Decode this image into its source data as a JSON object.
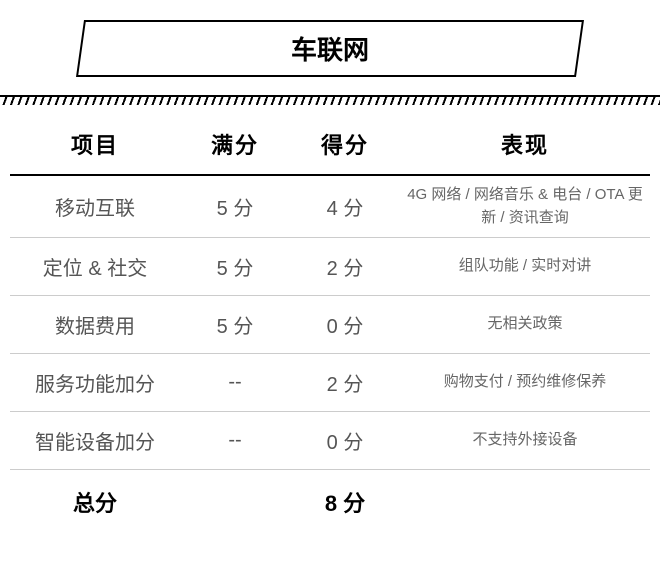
{
  "title": "车联网",
  "headers": {
    "item": "项目",
    "max": "满分",
    "score": "得分",
    "performance": "表现"
  },
  "rows": [
    {
      "item": "移动互联",
      "max": "5 分",
      "score": "4 分",
      "performance": "4G 网络 / 网络音乐 & 电台 / OTA 更新 / 资讯查询"
    },
    {
      "item": "定位 & 社交",
      "max": "5 分",
      "score": "2 分",
      "performance": "组队功能 / 实时对讲"
    },
    {
      "item": "数据费用",
      "max": "5 分",
      "score": "0 分",
      "performance": "无相关政策"
    },
    {
      "item": "服务功能加分",
      "max": "--",
      "score": "2 分",
      "performance": "购物支付 / 预约维修保养"
    },
    {
      "item": "智能设备加分",
      "max": "--",
      "score": "0 分",
      "performance": "不支持外接设备"
    }
  ],
  "total": {
    "label": "总分",
    "value": "8 分"
  },
  "colors": {
    "border": "#000000",
    "rowBorder": "#cccccc",
    "text": "#555555",
    "perfText": "#666666",
    "background": "#ffffff"
  }
}
